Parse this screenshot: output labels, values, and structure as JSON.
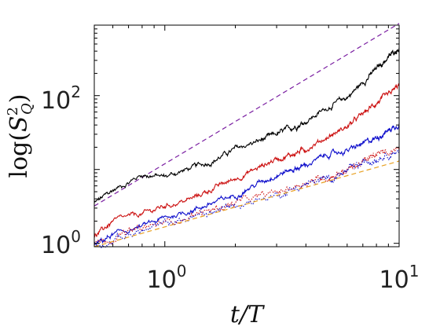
{
  "chart_data": {
    "type": "line",
    "title": "",
    "xlabel": "t/T",
    "ylabel": "log(S_Q^2)",
    "xscale": "log",
    "yscale": "log",
    "xlim": [
      0.5,
      10
    ],
    "ylim": [
      0.9,
      900
    ],
    "x_ticks": [
      {
        "value": 1,
        "base": "10",
        "exp": "0"
      },
      {
        "value": 10,
        "base": "10",
        "exp": "1"
      }
    ],
    "y_ticks": [
      {
        "value": 1,
        "base": "10",
        "exp": "0"
      },
      {
        "value": 100,
        "base": "10",
        "exp": "2"
      }
    ],
    "grid": false,
    "legend": "none",
    "series": [
      {
        "style": "dashed",
        "color": "#7b1fa2",
        "x": [
          0.5,
          10
        ],
        "y": [
          3.2,
          950
        ]
      },
      {
        "style": "solid",
        "color": "#000000",
        "noise": 0.018,
        "x": [
          0.5,
          0.6,
          0.8,
          1.0,
          1.3,
          1.6,
          2.0,
          2.5,
          3.0,
          3.5,
          4.0,
          5.0,
          6.0,
          7.0,
          8.0,
          9.0,
          10.0
        ],
        "y": [
          3.5,
          5.2,
          8.5,
          8.0,
          10.5,
          13.0,
          19.0,
          24.0,
          30.0,
          37.0,
          45.0,
          70.0,
          95.0,
          150.0,
          230.0,
          330.0,
          450.0
        ]
      },
      {
        "style": "solid",
        "color": "#cc1111",
        "noise": 0.018,
        "x": [
          0.5,
          0.6,
          0.8,
          1.0,
          1.3,
          1.6,
          2.0,
          2.5,
          3.0,
          3.5,
          4.0,
          5.0,
          6.0,
          7.0,
          8.0,
          9.0,
          10.0
        ],
        "y": [
          1.2,
          2.0,
          2.5,
          3.2,
          4.0,
          5.5,
          7.5,
          10.5,
          14.0,
          16.0,
          19.0,
          28.0,
          38.0,
          56.0,
          80.0,
          100.0,
          140.0
        ]
      },
      {
        "style": "solid",
        "color": "#1010cc",
        "noise": 0.018,
        "x": [
          0.5,
          0.6,
          0.8,
          1.0,
          1.3,
          1.6,
          2.0,
          2.5,
          3.0,
          3.5,
          4.0,
          5.0,
          6.0,
          7.0,
          8.0,
          9.0,
          10.0
        ],
        "y": [
          0.95,
          1.3,
          1.7,
          2.2,
          2.8,
          3.5,
          4.5,
          6.5,
          8.5,
          10.0,
          11.5,
          16.0,
          18.0,
          22.0,
          27.0,
          34.0,
          42.0
        ]
      },
      {
        "style": "dotted",
        "color": "#cc1111",
        "noise": 0.025,
        "x": [
          0.5,
          0.7,
          1.0,
          1.5,
          2.0,
          3.0,
          4.0,
          5.0,
          6.0,
          7.0,
          8.0,
          10.0
        ],
        "y": [
          1.0,
          1.4,
          1.9,
          2.7,
          3.5,
          4.8,
          6.8,
          8.0,
          10.0,
          12.5,
          15.5,
          20.0
        ]
      },
      {
        "style": "dotted",
        "color": "#1010cc",
        "noise": 0.025,
        "x": [
          0.5,
          0.7,
          1.0,
          1.5,
          2.0,
          3.0,
          4.0,
          5.0,
          6.0,
          7.0,
          8.0,
          10.0
        ],
        "y": [
          0.95,
          1.3,
          1.8,
          2.5,
          3.3,
          4.5,
          6.3,
          7.5,
          9.5,
          12.0,
          14.5,
          19.0
        ]
      },
      {
        "style": "dashed",
        "color": "#e8a020",
        "x": [
          0.5,
          10
        ],
        "y": [
          0.9,
          13
        ]
      }
    ]
  }
}
